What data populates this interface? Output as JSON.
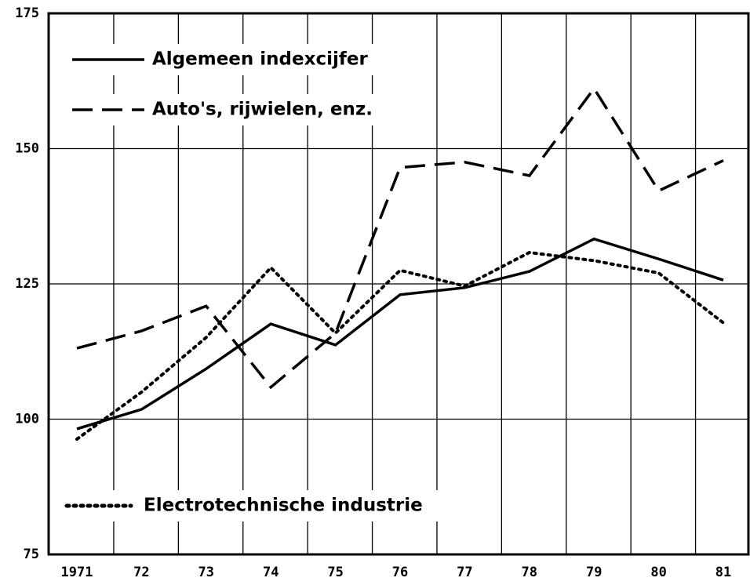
{
  "chart_data": {
    "type": "line",
    "categories": [
      "1971",
      "72",
      "73",
      "74",
      "75",
      "76",
      "77",
      "78",
      "79",
      "80",
      "81"
    ],
    "series": [
      {
        "name": "Algemeen indexcijfer",
        "color": "#000000",
        "style": "solid",
        "values": [
          98.2,
          101.8,
          109.3,
          117.6,
          113.7,
          123,
          124.3,
          127.3,
          133.3,
          129.6,
          125.7
        ]
      },
      {
        "name": "Auto's, rijwielen, enz.",
        "color": "#000000",
        "style": "dashed",
        "values": [
          113.1,
          116.3,
          120.9,
          105.9,
          115.9,
          146.5,
          147.5,
          145,
          161.1,
          142.2,
          147.8
        ]
      },
      {
        "name": "Electrotechnische industrie",
        "color": "#000000",
        "style": "dotted",
        "values": [
          96.3,
          105,
          115.1,
          128,
          115.9,
          127.5,
          124.6,
          130.8,
          129.3,
          127,
          117.8
        ]
      }
    ],
    "ylim": [
      75,
      175
    ],
    "yticks": [
      75,
      100,
      125,
      150,
      175
    ],
    "grid": true
  }
}
